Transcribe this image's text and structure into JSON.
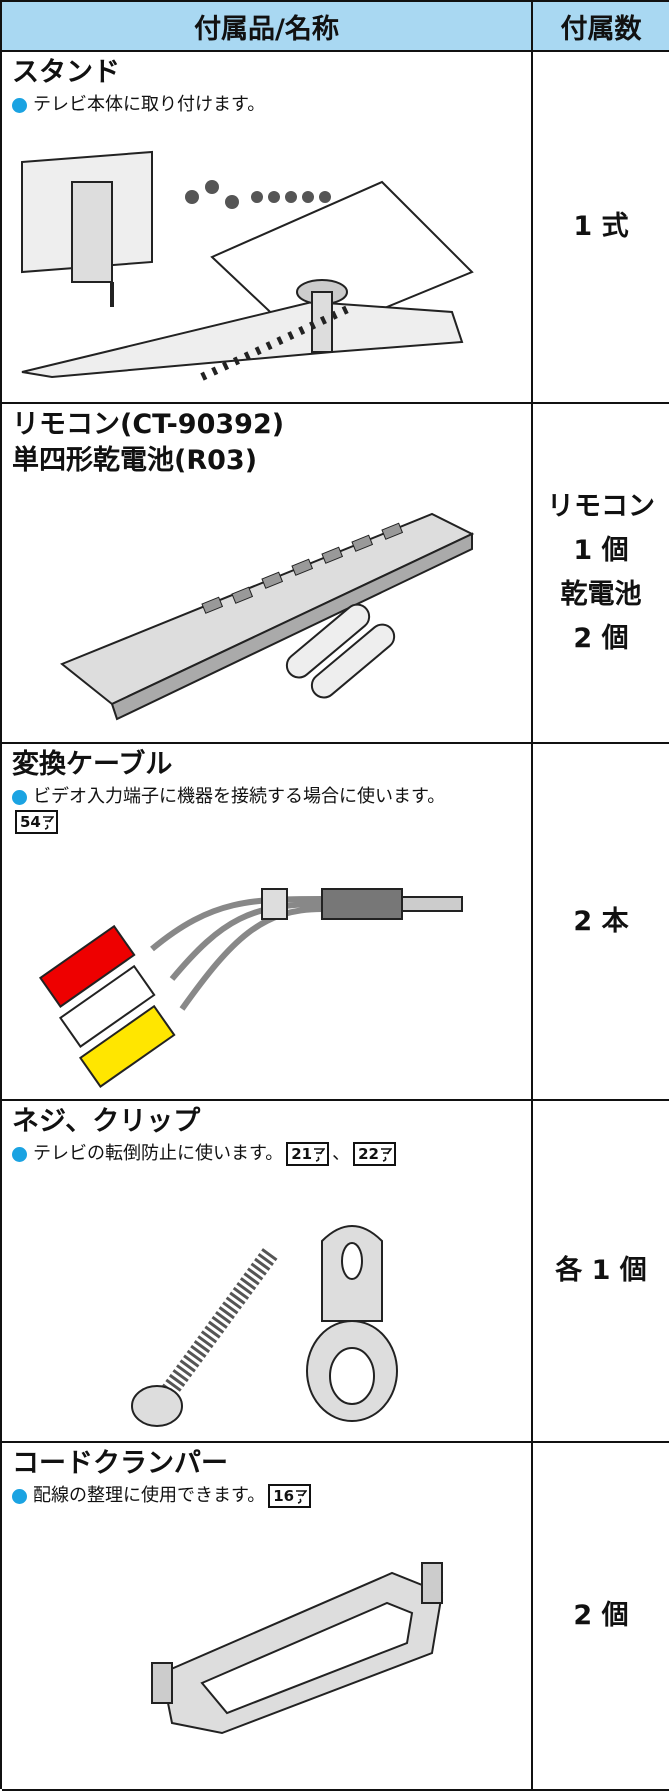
{
  "table": {
    "header": [
      "付属品/名称",
      "付属数"
    ],
    "ref_separator": "、",
    "rows": [
      {
        "name": [
          "スタンド"
        ],
        "note": "テレビ本体に取り付けます。",
        "refs": [],
        "quantity": [
          "1 式"
        ]
      },
      {
        "name": [
          "リモコン(CT-90392)",
          "単四形乾電池(R03)"
        ],
        "refs": [],
        "quantity": [
          "リモコン",
          "1 個",
          "乾電池",
          "2 個"
        ]
      },
      {
        "name": [
          "変換ケーブル"
        ],
        "note": "ビデオ入力端子に機器を接続する場合に使います。",
        "refs": [
          "54"
        ],
        "quantity": [
          "2 本"
        ]
      },
      {
        "name": [
          "ネジ、クリップ"
        ],
        "note": "テレビの転倒防止に使います。",
        "refs": [
          "21",
          "22"
        ],
        "quantity": [
          "各 1 個"
        ]
      },
      {
        "name": [
          "コードクランパー"
        ],
        "note": "配線の整理に使用できます。",
        "refs": [
          "16"
        ],
        "quantity": [
          "2 個"
        ]
      }
    ]
  }
}
